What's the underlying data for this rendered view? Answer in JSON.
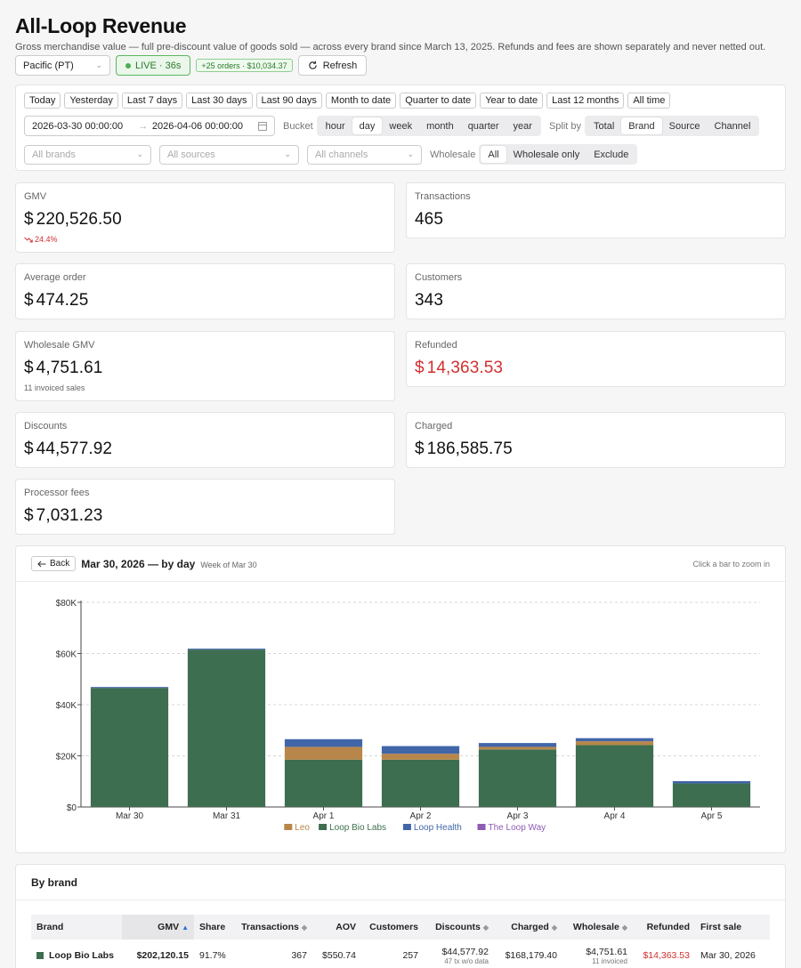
{
  "header": {
    "title": "All-Loop Revenue",
    "subtitle": "Gross merchandise value — full pre-discount value of goods sold — across every brand since March 13, 2025. Refunds and fees are shown separately and never netted out.",
    "timezone": "Pacific (PT)",
    "live_label": "LIVE · 36s",
    "orders_badge": "+25 orders · $10,034.37",
    "refresh_label": "Refresh"
  },
  "filters": {
    "presets": [
      "Today",
      "Yesterday",
      "Last 7 days",
      "Last 30 days",
      "Last 90 days",
      "Month to date",
      "Quarter to date",
      "Year to date",
      "Last 12 months",
      "All time"
    ],
    "date_start": "2026-03-30 00:00:00",
    "date_end": "2026-04-06 00:00:00",
    "bucket_label": "Bucket",
    "buckets": [
      "hour",
      "day",
      "week",
      "month",
      "quarter",
      "year"
    ],
    "bucket_selected": "day",
    "split_label": "Split by",
    "splits": [
      "Total",
      "Brand",
      "Source",
      "Channel"
    ],
    "split_selected": "Brand",
    "brands_placeholder": "All brands",
    "sources_placeholder": "All sources",
    "channels_placeholder": "All channels",
    "wholesale_label": "Wholesale",
    "wholesale_options": [
      "All",
      "Wholesale only",
      "Exclude"
    ],
    "wholesale_selected": "All"
  },
  "kpis": {
    "gmv": {
      "label": "GMV",
      "currency": "$",
      "value": "220,526.50",
      "delta": "24.4%"
    },
    "transactions": {
      "label": "Transactions",
      "value": "465"
    },
    "average_order": {
      "label": "Average order",
      "currency": "$",
      "value": "474.25"
    },
    "customers": {
      "label": "Customers",
      "value": "343"
    },
    "wholesale_gmv": {
      "label": "Wholesale GMV",
      "currency": "$",
      "value": "4,751.61",
      "note": "11 invoiced sales"
    },
    "refunded": {
      "label": "Refunded",
      "currency": "$",
      "value": "14,363.53"
    },
    "discounts": {
      "label": "Discounts",
      "currency": "$",
      "value": "44,577.92"
    },
    "charged": {
      "label": "Charged",
      "currency": "$",
      "value": "186,585.75"
    },
    "processor_fees": {
      "label": "Processor fees",
      "currency": "$",
      "value": "7,031.23"
    }
  },
  "chart_header": {
    "back_label": "Back",
    "title": "Mar 30, 2026 — by day",
    "week_label": "Week of Mar 30",
    "hint": "Click a bar to zoom in"
  },
  "chart_data": {
    "type": "bar",
    "stacked": true,
    "categories": [
      "Mar 30",
      "Mar 31",
      "Apr 1",
      "Apr 2",
      "Apr 3",
      "Apr 4",
      "Apr 5"
    ],
    "ylim": [
      0,
      80000
    ],
    "yticks": [
      0,
      20000,
      40000,
      60000,
      80000
    ],
    "ytick_labels": [
      "$0",
      "$20K",
      "$40K",
      "$60K",
      "$80K"
    ],
    "grid": true,
    "legend_position": "bottom",
    "series": [
      {
        "name": "Loop Bio Labs",
        "color": "#3d6e4f",
        "values": [
          46500,
          61500,
          18500,
          18500,
          22500,
          24200,
          9200
        ]
      },
      {
        "name": "Leo",
        "color": "#b8864a",
        "values": [
          0,
          0,
          5000,
          2300,
          1000,
          1500,
          0
        ]
      },
      {
        "name": "Loop Health",
        "color": "#4166a8",
        "values": [
          400,
          400,
          3000,
          3000,
          1500,
          1200,
          900
        ]
      },
      {
        "name": "The Loop Way",
        "color": "#8e5bb5",
        "values": [
          0,
          0,
          0,
          0,
          0,
          0,
          0
        ]
      }
    ],
    "legend_order": [
      "Leo",
      "Loop Bio Labs",
      "Loop Health",
      "The Loop Way"
    ]
  },
  "brand_table": {
    "title": "By brand",
    "columns": [
      "Brand",
      "GMV",
      "Share",
      "Transactions",
      "AOV",
      "Customers",
      "Discounts",
      "Charged",
      "Wholesale",
      "Refunded",
      "First sale"
    ],
    "rows": [
      {
        "brand": "Loop Bio Labs",
        "color": "#3d6e4f",
        "gmv": "$202,120.15",
        "share": "91.7%",
        "transactions": "367",
        "aov": "$550.74",
        "customers": "257",
        "discounts": "$44,577.92",
        "discounts_note": "47 tx w/o data",
        "charged": "$168,179.40",
        "wholesale": "$4,751.61",
        "wholesale_note": "11 invoiced",
        "refunded": "$14,363.53",
        "first_sale": "Mar 30, 2026"
      }
    ]
  }
}
